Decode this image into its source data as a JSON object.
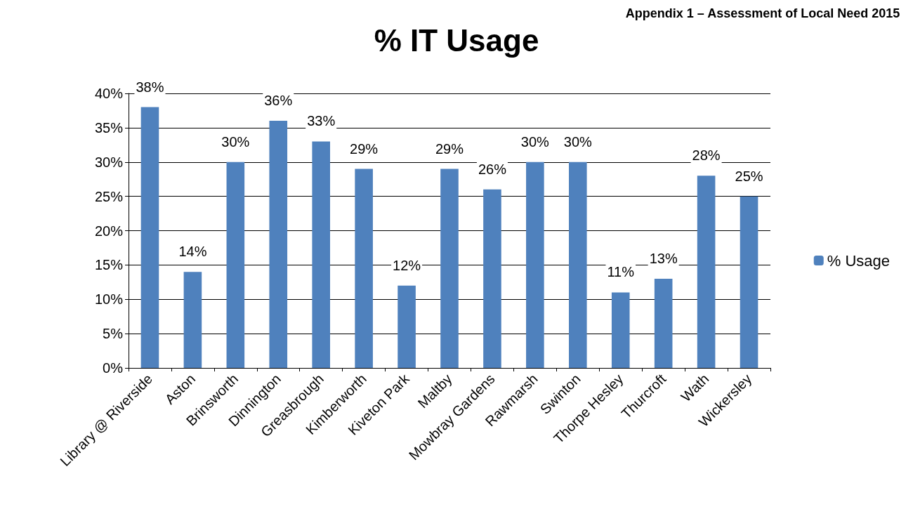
{
  "chart_data": {
    "type": "bar",
    "title": "% IT Usage",
    "annotations": [
      "Appendix 1 – Assessment of Local Need 2015"
    ],
    "categories": [
      "Library @ Riverside",
      "Aston",
      "Brinsworth",
      "Dinnington",
      "Greasbrough",
      "Kimberworth",
      "Kiveton Park",
      "Maltby",
      "Mowbray Gardens",
      "Rawmarsh",
      "Swinton",
      "Thorpe Hesley",
      "Thurcroft",
      "Wath",
      "Wickersley"
    ],
    "series": [
      {
        "name": "% Usage",
        "color": "#4f81bd",
        "values": [
          38,
          14,
          30,
          36,
          33,
          29,
          12,
          29,
          26,
          30,
          30,
          11,
          13,
          28,
          25
        ],
        "value_labels": [
          "38%",
          "14%",
          "30%",
          "36%",
          "33%",
          "29%",
          "12%",
          "29%",
          "26%",
          "30%",
          "30%",
          "11%",
          "13%",
          "28%",
          "25%"
        ]
      }
    ],
    "ylim": [
      0,
      40
    ],
    "yticks": [
      {
        "value": 0,
        "label": "0%"
      },
      {
        "value": 5,
        "label": "5%"
      },
      {
        "value": 10,
        "label": "10%"
      },
      {
        "value": 15,
        "label": "15%"
      },
      {
        "value": 20,
        "label": "20%"
      },
      {
        "value": 25,
        "label": "25%"
      },
      {
        "value": 30,
        "label": "30%"
      },
      {
        "value": 35,
        "label": "35%"
      },
      {
        "value": 40,
        "label": "40%"
      }
    ],
    "grid": "y",
    "legend": "right"
  }
}
